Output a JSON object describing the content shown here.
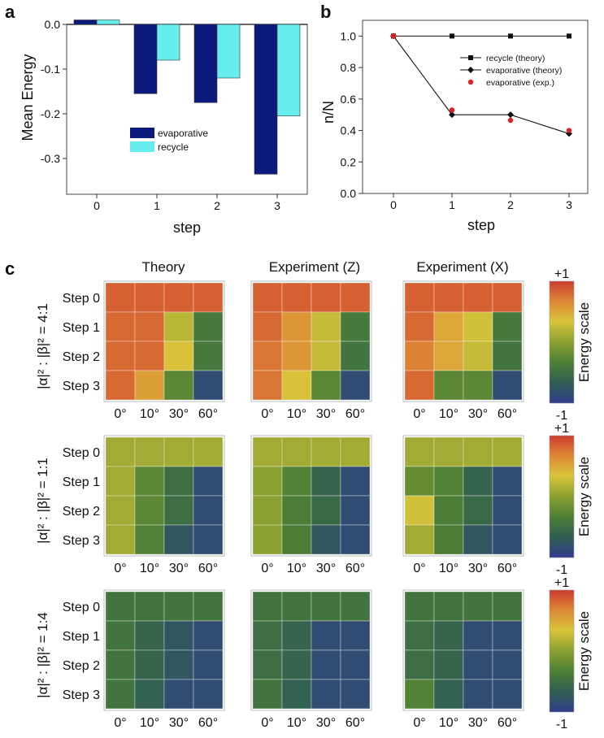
{
  "panel_labels": {
    "a": "a",
    "b": "b",
    "c": "c"
  },
  "chart_data": [
    {
      "id": "a",
      "type": "bar",
      "categories": [
        "0",
        "1",
        "2",
        "3"
      ],
      "series": [
        {
          "name": "evaporative",
          "color": "#0d1a7d",
          "values": [
            0.01,
            -0.155,
            -0.175,
            -0.335
          ]
        },
        {
          "name": "recycle",
          "color": "#66eeee",
          "values": [
            0.01,
            -0.08,
            -0.12,
            -0.205
          ]
        }
      ],
      "xlabel": "step",
      "ylabel": "Mean Energy",
      "ylim": [
        -0.38,
        0.0
      ],
      "yticks": [
        "0.0",
        "-0.1",
        "-0.2",
        "-0.3"
      ],
      "ytick_values": [
        0.0,
        -0.1,
        -0.2,
        -0.3
      ],
      "legend_position": "center-right"
    },
    {
      "id": "b",
      "type": "line",
      "x": [
        0,
        1,
        2,
        3
      ],
      "xticks": [
        "0",
        "1",
        "2",
        "3"
      ],
      "series": [
        {
          "name": "recycle (theory)",
          "marker": "square",
          "color": "#111111",
          "values": [
            1.0,
            1.0,
            1.0,
            1.0
          ]
        },
        {
          "name": "evaporative (theory)",
          "marker": "diamond",
          "color": "#111111",
          "values": [
            1.0,
            0.5,
            0.5,
            0.38
          ]
        },
        {
          "name": "evaporative (exp.)",
          "marker": "dot",
          "color": "#e02020",
          "values": [
            1.0,
            0.53,
            0.465,
            0.4
          ]
        }
      ],
      "xlabel": "step",
      "ylabel": "n/N",
      "ylim": [
        0.0,
        1.1
      ],
      "yticks": [
        "0.0",
        "0.2",
        "0.4",
        "0.6",
        "0.8",
        "1.0"
      ],
      "ytick_values": [
        0.0,
        0.2,
        0.4,
        0.6,
        0.8,
        1.0
      ],
      "legend_position": "upper-right"
    },
    {
      "id": "c",
      "type": "heatmap",
      "column_titles": [
        "Theory",
        "Experiment (Z)",
        "Experiment (X)"
      ],
      "row_labels": [
        "Step 0",
        "Step 1",
        "Step 2",
        "Step 3"
      ],
      "angle_labels": [
        "0°",
        "10°",
        "30°",
        "60°"
      ],
      "ratio_labels": [
        "|α|² : |β|² = 4:1",
        "|α|² : |β|² = 1:1",
        "|α|² : |β|² = 1:4"
      ],
      "scale": {
        "max_label": "+1",
        "min_label": "-1",
        "title": "Energy scale",
        "range": [
          -1,
          1
        ]
      },
      "colorscale": [
        "#323c8c",
        "#2f5f52",
        "#4c7f35",
        "#8aa030",
        "#d9c43a",
        "#de8a35",
        "#cc3b30"
      ],
      "groups": [
        {
          "ratio": "4:1",
          "matrices": [
            [
              [
                0.84,
                0.84,
                0.84,
                0.84
              ],
              [
                0.8,
                0.8,
                0.2,
                -0.4
              ],
              [
                0.8,
                0.8,
                0.35,
                -0.4
              ],
              [
                0.8,
                0.55,
                -0.25,
                -0.85
              ]
            ],
            [
              [
                0.84,
                0.84,
                0.84,
                0.84
              ],
              [
                0.8,
                0.6,
                0.25,
                -0.4
              ],
              [
                0.75,
                0.6,
                0.25,
                -0.45
              ],
              [
                0.75,
                0.35,
                -0.25,
                -0.85
              ]
            ],
            [
              [
                0.84,
                0.84,
                0.84,
                0.84
              ],
              [
                0.8,
                0.5,
                0.3,
                -0.4
              ],
              [
                0.7,
                0.5,
                0.25,
                -0.45
              ],
              [
                0.8,
                -0.25,
                -0.25,
                -0.85
              ]
            ]
          ]
        },
        {
          "ratio": "1:1",
          "matrices": [
            [
              [
                0.1,
                0.1,
                0.1,
                0.1
              ],
              [
                0.1,
                -0.25,
                -0.5,
                -0.85
              ],
              [
                0.1,
                -0.25,
                -0.5,
                -0.85
              ],
              [
                0.1,
                -0.3,
                -0.75,
                -0.85
              ]
            ],
            [
              [
                0.1,
                0.1,
                0.1,
                0.1
              ],
              [
                0.0,
                -0.3,
                -0.6,
                -0.85
              ],
              [
                0.0,
                -0.35,
                -0.55,
                -0.85
              ],
              [
                0.0,
                -0.35,
                -0.75,
                -0.85
              ]
            ],
            [
              [
                0.1,
                0.1,
                0.1,
                0.1
              ],
              [
                -0.2,
                -0.3,
                -0.6,
                -0.85
              ],
              [
                0.3,
                -0.35,
                -0.55,
                -0.85
              ],
              [
                0.1,
                -0.35,
                -0.75,
                -0.85
              ]
            ]
          ]
        },
        {
          "ratio": "1:4",
          "matrices": [
            [
              [
                -0.45,
                -0.45,
                -0.45,
                -0.45
              ],
              [
                -0.45,
                -0.6,
                -0.75,
                -0.85
              ],
              [
                -0.45,
                -0.6,
                -0.75,
                -0.85
              ],
              [
                -0.45,
                -0.65,
                -0.85,
                -0.85
              ]
            ],
            [
              [
                -0.45,
                -0.45,
                -0.45,
                -0.45
              ],
              [
                -0.5,
                -0.6,
                -0.85,
                -0.85
              ],
              [
                -0.5,
                -0.6,
                -0.85,
                -0.85
              ],
              [
                -0.45,
                -0.65,
                -0.85,
                -0.85
              ]
            ],
            [
              [
                -0.45,
                -0.45,
                -0.45,
                -0.45
              ],
              [
                -0.5,
                -0.6,
                -0.85,
                -0.85
              ],
              [
                -0.5,
                -0.6,
                -0.85,
                -0.85
              ],
              [
                -0.3,
                -0.65,
                -0.85,
                -0.85
              ]
            ]
          ]
        }
      ]
    }
  ]
}
